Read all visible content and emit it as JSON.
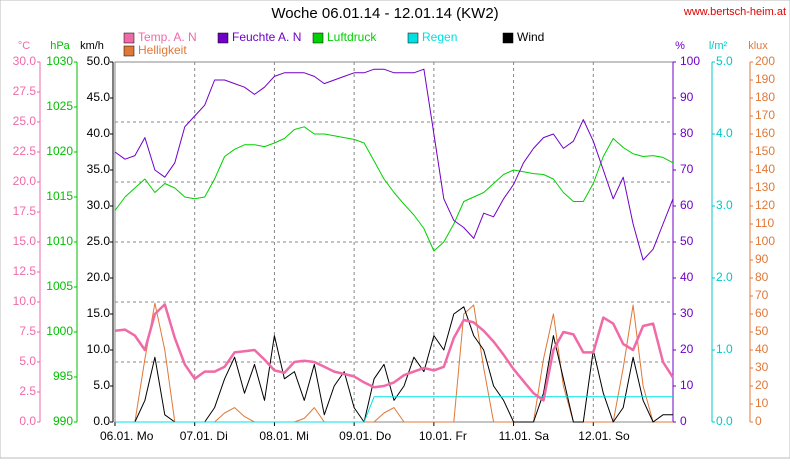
{
  "chart_data": {
    "type": "line",
    "title": "Woche 06.01.14 - 12.01.14 (KW2)",
    "source": "www.bertsch-heim.at",
    "grid": true,
    "xlim": [
      0,
      168
    ],
    "xticks": [
      {
        "value": 0,
        "label": "06.01. Mo"
      },
      {
        "value": 24,
        "label": "07.01. Di"
      },
      {
        "value": 48,
        "label": "08.01. Mi"
      },
      {
        "value": 72,
        "label": "09.01. Do"
      },
      {
        "value": 96,
        "label": "10.01. Fr"
      },
      {
        "value": 120,
        "label": "11.01. Sa"
      },
      {
        "value": 144,
        "label": "12.01. So"
      }
    ],
    "x": [
      0,
      3,
      6,
      9,
      12,
      15,
      18,
      21,
      24,
      27,
      30,
      33,
      36,
      39,
      42,
      45,
      48,
      51,
      54,
      57,
      60,
      63,
      66,
      69,
      72,
      75,
      78,
      81,
      84,
      87,
      90,
      93,
      96,
      99,
      102,
      105,
      108,
      111,
      114,
      117,
      120,
      123,
      126,
      129,
      132,
      135,
      138,
      141,
      144,
      147,
      150,
      153,
      156,
      159,
      162,
      165,
      168
    ],
    "axes": [
      {
        "label": "°C",
        "color": "#f06aa8",
        "lim": [
          0,
          30
        ],
        "ticks": [
          {
            "value": 0,
            "label": "0.0"
          },
          {
            "value": 2.5,
            "label": "2.5"
          },
          {
            "value": 5,
            "label": "5.0"
          },
          {
            "value": 7.5,
            "label": "7.5"
          },
          {
            "value": 10,
            "label": "10.0"
          },
          {
            "value": 12.5,
            "label": "12.5"
          },
          {
            "value": 15,
            "label": "15.0"
          },
          {
            "value": 17.5,
            "label": "17.5"
          },
          {
            "value": 20,
            "label": "20.0"
          },
          {
            "value": 22.5,
            "label": "22.5"
          },
          {
            "value": 25,
            "label": "25.0"
          },
          {
            "value": 27.5,
            "label": "27.5"
          },
          {
            "value": 30,
            "label": "30.0"
          }
        ]
      },
      {
        "label": "hPa",
        "color": "#00c000",
        "lim": [
          990,
          1030
        ],
        "ticks": [
          990,
          995,
          1000,
          1005,
          1010,
          1015,
          1020,
          1025,
          1030
        ]
      },
      {
        "label": "km/h",
        "color": "#000000",
        "lim": [
          0,
          50
        ],
        "ticks": [
          {
            "value": 0,
            "label": "0.0"
          },
          {
            "value": 5,
            "label": "5.0"
          },
          {
            "value": 10,
            "label": "10.0"
          },
          {
            "value": 15,
            "label": "15.0"
          },
          {
            "value": 20,
            "label": "20.0"
          },
          {
            "value": 25,
            "label": "25.0"
          },
          {
            "value": 30,
            "label": "30.0"
          },
          {
            "value": 35,
            "label": "35.0"
          },
          {
            "value": 40,
            "label": "40.0"
          },
          {
            "value": 45,
            "label": "45.0"
          },
          {
            "value": 50,
            "label": "50.0"
          }
        ]
      },
      {
        "label": "%",
        "color": "#7000c8",
        "lim": [
          0,
          100
        ],
        "ticks": [
          0,
          10,
          20,
          30,
          40,
          50,
          60,
          70,
          80,
          90,
          100
        ]
      },
      {
        "label": "l/m²",
        "color": "#00c8c8",
        "lim": [
          0,
          5
        ],
        "ticks": [
          {
            "value": 0,
            "label": "0.0"
          },
          {
            "value": 1,
            "label": "1.0"
          },
          {
            "value": 2,
            "label": "2.0"
          },
          {
            "value": 3,
            "label": "3.0"
          },
          {
            "value": 4,
            "label": "4.0"
          },
          {
            "value": 5,
            "label": "5.0"
          }
        ]
      },
      {
        "label": "klux",
        "color": "#e07838",
        "lim": [
          0,
          200
        ],
        "ticks": [
          0,
          10,
          20,
          30,
          40,
          50,
          60,
          70,
          80,
          90,
          100,
          110,
          120,
          130,
          140,
          150,
          160,
          170,
          180,
          190,
          200
        ]
      }
    ],
    "series": [
      {
        "name": "Temp. A. N",
        "color": "#f06aa8",
        "axis": 0,
        "values": [
          7.6,
          7.7,
          7.2,
          6.0,
          9.0,
          9.8,
          7.0,
          4.8,
          3.6,
          4.2,
          4.2,
          4.6,
          5.8,
          5.9,
          6.0,
          5.2,
          4.3,
          4.1,
          5.0,
          5.1,
          5.0,
          4.6,
          4.2,
          4.0,
          3.8,
          3.3,
          2.9,
          3.0,
          3.3,
          3.9,
          4.2,
          4.5,
          4.3,
          4.6,
          7.0,
          8.5,
          8.3,
          7.6,
          6.7,
          5.6,
          4.4,
          3.4,
          2.4,
          1.8,
          6.0,
          7.5,
          7.3,
          5.8,
          5.8,
          8.7,
          8.2,
          6.5,
          6.0,
          8.0,
          8.2,
          5.0,
          3.7
        ]
      },
      {
        "name": "Feuchte A. N",
        "color": "#7000c8",
        "axis": 3,
        "values": [
          75,
          73,
          74,
          79,
          70,
          68,
          72,
          82,
          85,
          88,
          95,
          95,
          94,
          93,
          91,
          93,
          96,
          97,
          97,
          97,
          96,
          94,
          95,
          96,
          97,
          97,
          98,
          98,
          97,
          97,
          97,
          98,
          80,
          62,
          56,
          54,
          51,
          58,
          57,
          62,
          66,
          72,
          76,
          79,
          80,
          76,
          78,
          84,
          78,
          70,
          62,
          68,
          55,
          45,
          48,
          55,
          62
        ]
      },
      {
        "name": "Luftdruck",
        "color": "#00d000",
        "axis": 1,
        "values": [
          1013.5,
          1015,
          1016,
          1017,
          1015.5,
          1016.5,
          1016,
          1015,
          1014.8,
          1015,
          1017,
          1019.5,
          1020.3,
          1020.8,
          1020.8,
          1020.6,
          1021,
          1021.5,
          1022.5,
          1022.8,
          1022,
          1022,
          1021.8,
          1021.6,
          1021.4,
          1021,
          1019,
          1017,
          1015.5,
          1014.2,
          1013,
          1011.5,
          1009,
          1010,
          1012,
          1014.5,
          1015,
          1015.5,
          1016.5,
          1017.5,
          1018,
          1017.8,
          1017.6,
          1017.5,
          1017,
          1015.5,
          1014.5,
          1014.5,
          1016.5,
          1019.5,
          1021.5,
          1020.5,
          1019.8,
          1019.5,
          1019.6,
          1019.4,
          1018.8
        ]
      },
      {
        "name": "Regen",
        "color": "#00e0e0",
        "axis": 4,
        "values": [
          0,
          0,
          0,
          0,
          0,
          0,
          0,
          0,
          0,
          0,
          0,
          0,
          0,
          0,
          0,
          0,
          0,
          0,
          0,
          0,
          0,
          0,
          0,
          0,
          0,
          0,
          0.35,
          0.35,
          0.35,
          0.35,
          0.35,
          0.35,
          0.35,
          0.35,
          0.35,
          0.35,
          0.35,
          0.35,
          0.35,
          0.35,
          0.35,
          0.35,
          0.35,
          0.35,
          0.35,
          0.35,
          0.35,
          0.35,
          0.35,
          0.35,
          0.35,
          0.35,
          0.35,
          0.35,
          0.35,
          0.35,
          0.35
        ]
      },
      {
        "name": "Wind",
        "color": "#000000",
        "axis": 2,
        "values": [
          0,
          0,
          0,
          3,
          9,
          1,
          0,
          0,
          0,
          0,
          2,
          6,
          9,
          4,
          8,
          3,
          12,
          6,
          7,
          3,
          8,
          1,
          5,
          7,
          2,
          0,
          6,
          8,
          3,
          5,
          9,
          7,
          12,
          10,
          15,
          16,
          12,
          10,
          5,
          3,
          0,
          0,
          0,
          4,
          12,
          6,
          0,
          0,
          10,
          4,
          0,
          2,
          9,
          3,
          0,
          1,
          1
        ]
      },
      {
        "name": "Helligkeit",
        "color": "#e07838",
        "axis": 5,
        "values": [
          0,
          0,
          0,
          35,
          66,
          40,
          0,
          0,
          0,
          0,
          0,
          5,
          8,
          3,
          0,
          0,
          0,
          0,
          0,
          2,
          8,
          0,
          0,
          0,
          0,
          0,
          0,
          5,
          8,
          0,
          0,
          0,
          0,
          0,
          0,
          60,
          65,
          30,
          0,
          0,
          0,
          0,
          0,
          35,
          60,
          20,
          0,
          0,
          0,
          0,
          0,
          30,
          65,
          20,
          0,
          0,
          0
        ]
      }
    ]
  }
}
